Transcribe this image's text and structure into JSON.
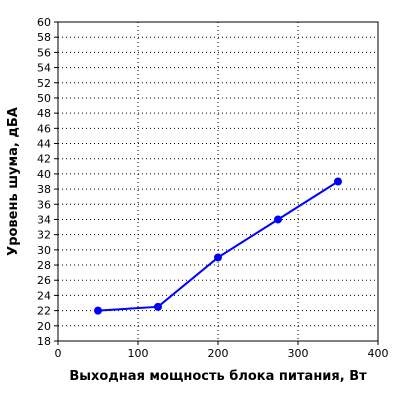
{
  "chart_data": {
    "type": "line",
    "title": "",
    "xlabel": "Выходная мощность блока питания, Вт",
    "ylabel": "Уровень шума, дБА",
    "xlim": [
      0,
      400
    ],
    "ylim": [
      18,
      60
    ],
    "x_ticks": [
      0,
      100,
      200,
      300,
      400
    ],
    "y_ticks": [
      18,
      20,
      22,
      24,
      26,
      28,
      30,
      32,
      34,
      36,
      38,
      40,
      42,
      44,
      46,
      48,
      50,
      52,
      54,
      56,
      58,
      60
    ],
    "grid": true,
    "legend": "none",
    "series": [
      {
        "color": "#0000ff",
        "x": [
          50,
          125,
          200,
          275,
          350
        ],
        "y": [
          22,
          22.5,
          29,
          34,
          39
        ]
      }
    ]
  }
}
